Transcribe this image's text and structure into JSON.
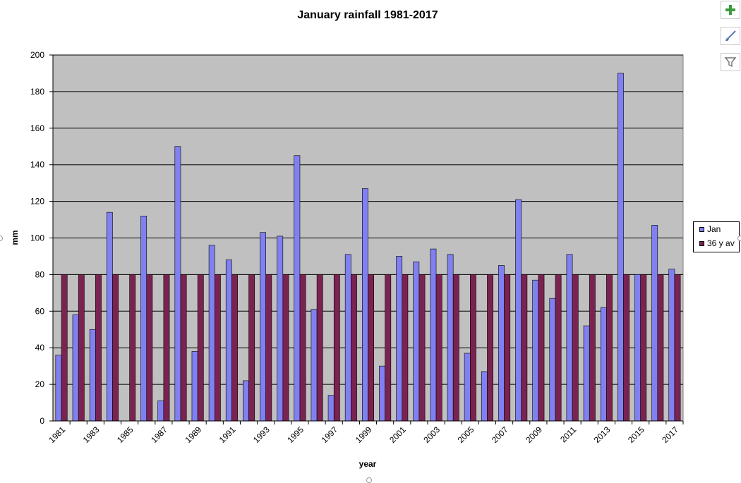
{
  "chart_data": {
    "type": "bar",
    "title": "January rainfall 1981-2017",
    "xlabel": "year",
    "ylabel": "mm",
    "ylim": [
      0,
      200
    ],
    "yticks": [
      0,
      20,
      40,
      60,
      80,
      100,
      120,
      140,
      160,
      180,
      200
    ],
    "grid": true,
    "legend_position": "right",
    "plot_background": "#c0c0c0",
    "categories": [
      "1981",
      "1982",
      "1983",
      "1984",
      "1985",
      "1986",
      "1987",
      "1988",
      "1989",
      "1990",
      "1991",
      "1992",
      "1993",
      "1994",
      "1995",
      "1996",
      "1997",
      "1998",
      "1999",
      "2000",
      "2001",
      "2002",
      "2003",
      "2004",
      "2005",
      "2006",
      "2007",
      "2008",
      "2009",
      "2010",
      "2011",
      "2012",
      "2013",
      "2014",
      "2015",
      "2016",
      "2017"
    ],
    "xtick_labels": [
      "1981",
      "",
      "1983",
      "",
      "1985",
      "",
      "1987",
      "",
      "1989",
      "",
      "1991",
      "",
      "1993",
      "",
      "1995",
      "",
      "1997",
      "",
      "1999",
      "",
      "2001",
      "",
      "2003",
      "",
      "2005",
      "",
      "2007",
      "",
      "2009",
      "",
      "2011",
      "",
      "2013",
      "",
      "2015",
      "",
      "2017"
    ],
    "series": [
      {
        "name": "Jan",
        "color": "#8080f0",
        "values": [
          36,
          58,
          50,
          114,
          0,
          112,
          11,
          150,
          38,
          96,
          88,
          22,
          103,
          101,
          145,
          61,
          14,
          91,
          127,
          30,
          90,
          87,
          94,
          91,
          37,
          27,
          85,
          121,
          77,
          67,
          91,
          52,
          62,
          190,
          80,
          107,
          83
        ]
      },
      {
        "name": "36 y av",
        "color": "#7b2350",
        "values": [
          80,
          80,
          80,
          80,
          80,
          80,
          80,
          80,
          80,
          80,
          80,
          80,
          80,
          80,
          80,
          80,
          80,
          80,
          80,
          80,
          80,
          80,
          80,
          80,
          80,
          80,
          80,
          80,
          80,
          80,
          80,
          80,
          80,
          80,
          80,
          80,
          80
        ]
      }
    ]
  },
  "toolbar": {
    "buttons": [
      {
        "name": "add-chart-element-button",
        "icon": "plus-icon"
      },
      {
        "name": "chart-styles-button",
        "icon": "brush-icon"
      },
      {
        "name": "chart-filters-button",
        "icon": "filter-icon"
      }
    ]
  }
}
